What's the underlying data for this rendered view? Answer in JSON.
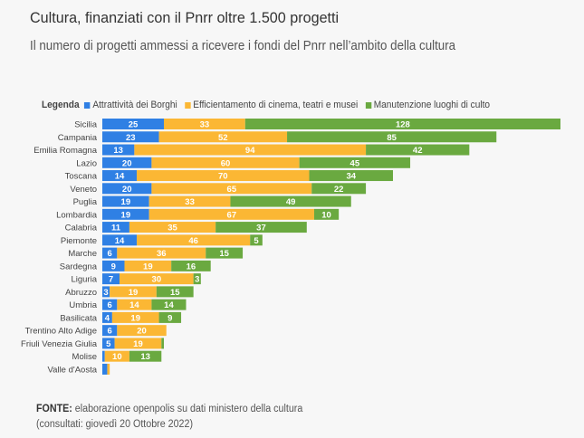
{
  "header": {
    "title": "Cultura, finanziati con il Pnrr oltre 1.500 progetti",
    "subtitle": "Il numero di progetti ammessi a ricevere i fondi del Pnrr nell’ambito della cultura"
  },
  "legend": {
    "title": "Legenda"
  },
  "source": {
    "label": "FONTE:",
    "text": "elaborazione openpolis su dati ministero della cultura",
    "note": "(consultati: giovedì 20 Ottobre 2022)"
  },
  "chart_data": {
    "type": "bar",
    "orientation": "horizontal",
    "stacked": true,
    "title": "Cultura, finanziati con il Pnrr oltre 1.500 progetti",
    "subtitle": "Il numero di progetti ammessi a ricevere i fondi del Pnrr nell’ambito della cultura",
    "xlabel": "",
    "ylabel": "",
    "grid": false,
    "legend_position": "top-left",
    "categories": [
      "Sicilia",
      "Campania",
      "Emilia Romagna",
      "Lazio",
      "Toscana",
      "Veneto",
      "Puglia",
      "Lombardia",
      "Calabria",
      "Piemonte",
      "Marche",
      "Sardegna",
      "Liguria",
      "Abruzzo",
      "Umbria",
      "Basilicata",
      "Trentino Alto Adige",
      "Friuli Venezia Giulia",
      "Molise",
      "Valle d'Aosta"
    ],
    "series": [
      {
        "name": "Attrattività dei Borghi",
        "color": "#2f80e4",
        "values": [
          25,
          23,
          13,
          20,
          14,
          20,
          19,
          19,
          11,
          14,
          6,
          9,
          7,
          3,
          6,
          4,
          6,
          5,
          1,
          2
        ]
      },
      {
        "name": "Efficientamento di cinema, teatri e musei",
        "color": "#fbb734",
        "values": [
          33,
          52,
          94,
          60,
          70,
          65,
          33,
          67,
          35,
          46,
          36,
          19,
          30,
          19,
          14,
          19,
          20,
          19,
          10,
          1
        ]
      },
      {
        "name": "Manutenzione luoghi di culto",
        "color": "#6aa940",
        "values": [
          128,
          85,
          42,
          45,
          34,
          22,
          49,
          10,
          37,
          5,
          15,
          16,
          3,
          15,
          14,
          9,
          0,
          1,
          13,
          0
        ]
      }
    ],
    "xlim": [
      0,
      186
    ]
  }
}
